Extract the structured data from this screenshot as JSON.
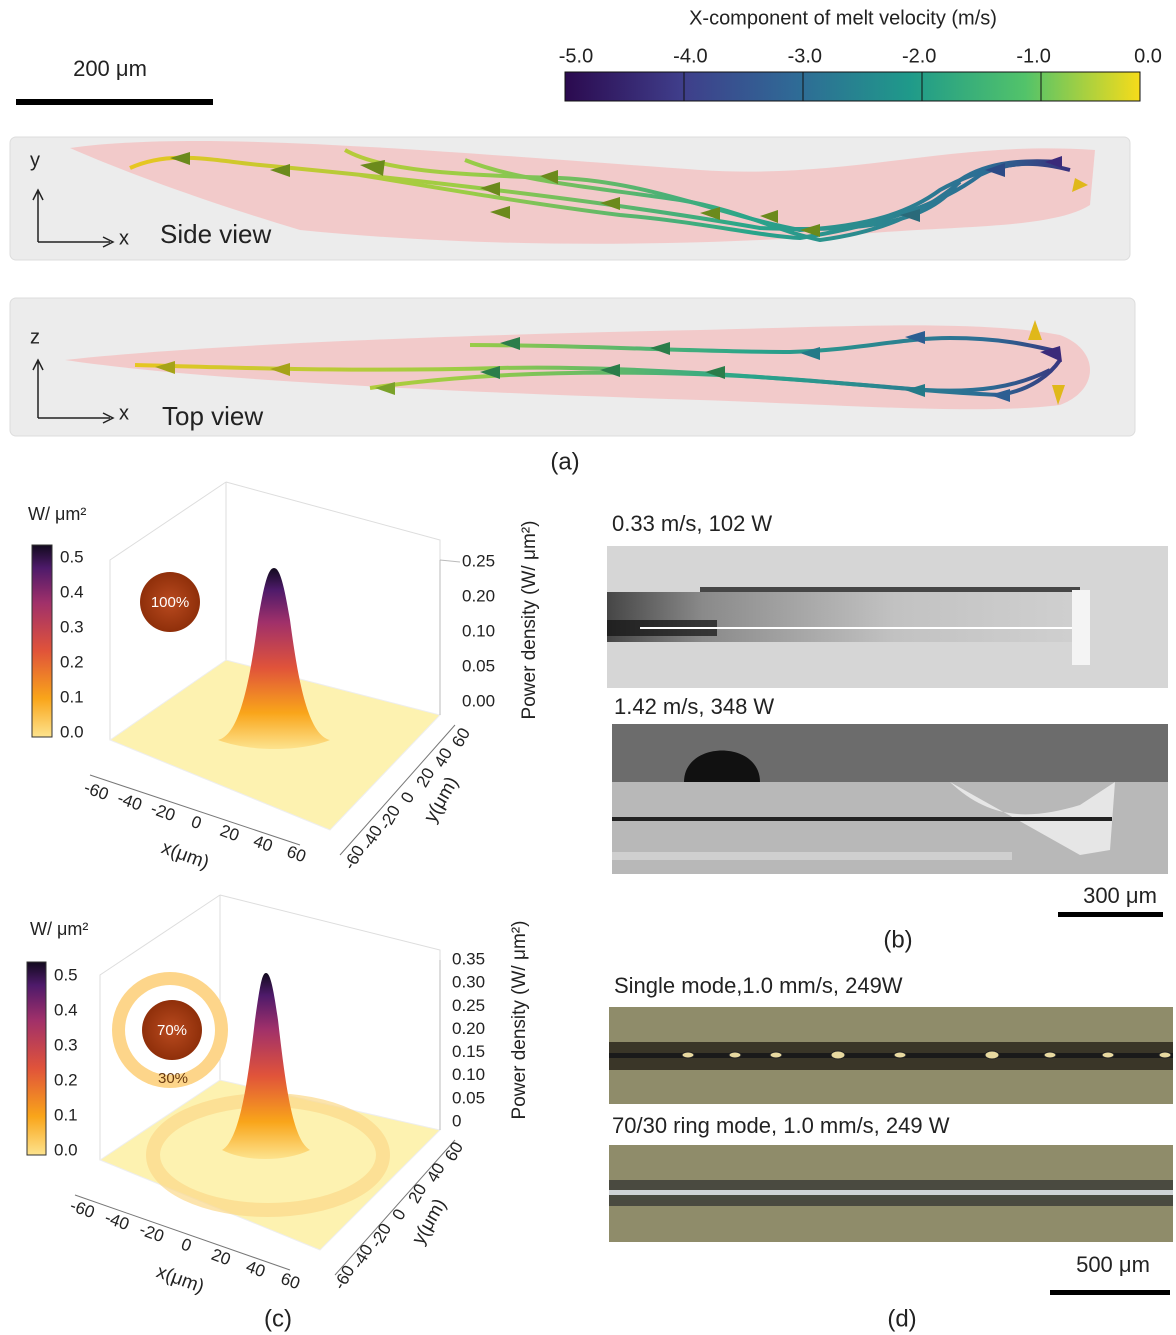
{
  "panel_a": {
    "colorbar_title": "X-component of melt velocity (m/s)",
    "colorbar_ticks": [
      "-5.0",
      "-4.0",
      "-3.0",
      "-2.0",
      "-1.0",
      "0.0"
    ],
    "scale_bar": "200 μm",
    "side_view": {
      "label": "Side view",
      "axis_vertical": "y",
      "axis_horizontal": "x"
    },
    "top_view": {
      "label": "Top view",
      "axis_vertical": "z",
      "axis_horizontal": "x"
    },
    "caption": "(a)"
  },
  "panel_b": {
    "image_1_label": "0.33 m/s, 102 W",
    "image_2_label": "1.42 m/s, 348 W",
    "scale_bar": "300 μm",
    "caption": "(b)"
  },
  "panel_c": {
    "plot_1": {
      "colorbar_unit": "W/ μm²",
      "colorbar_ticks": [
        "0.5",
        "0.4",
        "0.3",
        "0.2",
        "0.1",
        "0.0"
      ],
      "z_label": "Power density (W/ μm²)",
      "z_ticks": [
        "0.25",
        "0.20",
        "0.10",
        "0.05",
        "0.00"
      ],
      "x_label": "x(μm)",
      "x_ticks": [
        "-60",
        "-40",
        "-20",
        "0",
        "20",
        "40",
        "60"
      ],
      "y_label": "y(μm)",
      "y_ticks": [
        "-60",
        "-40",
        "-20",
        "0",
        "20",
        "40",
        "60"
      ],
      "beam_center": "100%"
    },
    "plot_2": {
      "colorbar_unit": "W/ μm²",
      "colorbar_ticks": [
        "0.5",
        "0.4",
        "0.3",
        "0.2",
        "0.1",
        "0.0"
      ],
      "z_label": "Power density (W/ μm²)",
      "z_ticks": [
        "0.35",
        "0.30",
        "0.25",
        "0.20",
        "0.15",
        "0.10",
        "0.05",
        "0"
      ],
      "x_label": "x(μm)",
      "x_ticks": [
        "-60",
        "-40",
        "-20",
        "0",
        "20",
        "40",
        "60"
      ],
      "y_label": "y(μm)",
      "y_ticks": [
        "-60",
        "-40",
        "-20",
        "0",
        "20",
        "40",
        "60"
      ],
      "beam_center": "70%",
      "beam_ring": "30%"
    },
    "caption": "(c)"
  },
  "panel_d": {
    "image_1_label": "Single mode,1.0 mm/s, 249W",
    "image_2_label": "70/30 ring mode, 1.0 mm/s, 249 W",
    "scale_bar": "500 μm",
    "caption": "(d)"
  }
}
